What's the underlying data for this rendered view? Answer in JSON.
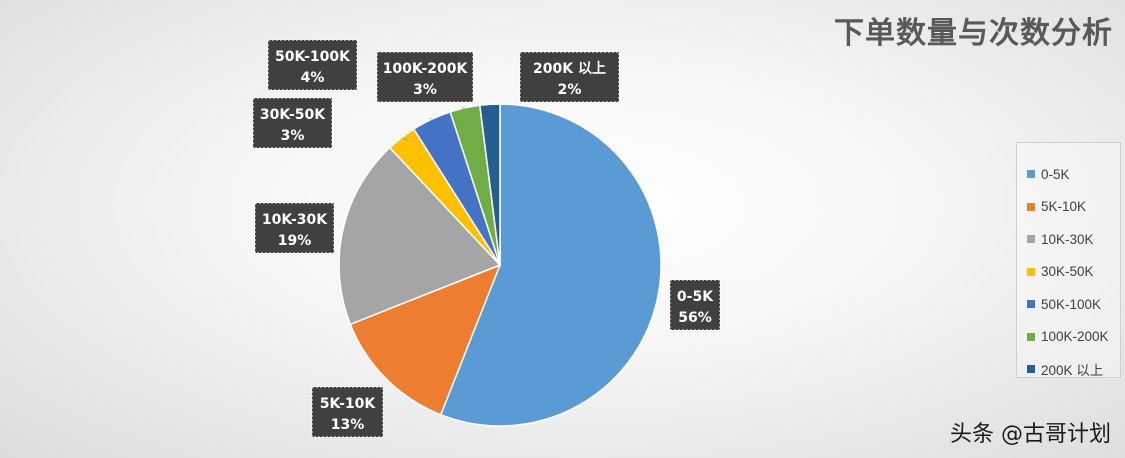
{
  "chart_data": {
    "type": "pie",
    "title": "下单数量与次数分析",
    "categories": [
      "0-5K",
      "5K-10K",
      "10K-30K",
      "30K-50K",
      "50K-100K",
      "100K-200K",
      "200K 以上"
    ],
    "values": [
      56,
      13,
      19,
      3,
      4,
      3,
      2
    ],
    "value_labels": [
      "56%",
      "13%",
      "19%",
      "3%",
      "4%",
      "3%",
      "2%"
    ],
    "colors": [
      "#5B9BD5",
      "#ED7D31",
      "#A5A5A5",
      "#FFC000",
      "#4472C4",
      "#70AD47",
      "#255E91"
    ],
    "legend": "right",
    "start_angle_deg": 0,
    "direction": "clockwise"
  },
  "watermark": "头条 @古哥计划"
}
